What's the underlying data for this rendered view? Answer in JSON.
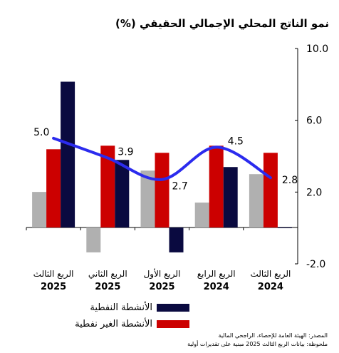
{
  "chart_data": {
    "type": "bar",
    "title": "نمو الناتج المحلي الإجمالي الحقيقي (%)",
    "categories": [
      {
        "line1": "الربع الثالث",
        "line2": "2025"
      },
      {
        "line1": "الربع الثاني",
        "line2": "2025"
      },
      {
        "line1": "الربع الأول",
        "line2": "2025"
      },
      {
        "line1": "الربع الرابع",
        "line2": "2024"
      },
      {
        "line1": "الربع الثالث",
        "line2": "2024"
      }
    ],
    "series": [
      {
        "key": "total",
        "type": "bar",
        "color": "#b0b0b0",
        "values": [
          1.0,
          -0.7,
          1.6,
          0.7,
          1.5
        ]
      },
      {
        "key": "nonoil",
        "type": "bar",
        "color": "#cc0000",
        "name": "الأنشطة الغير نفطية",
        "values": [
          2.2,
          2.3,
          2.1,
          2.3,
          2.1
        ]
      },
      {
        "key": "oil",
        "type": "bar",
        "color": "#0a0a40",
        "name": "الأنشطة النفطية",
        "values": [
          4.1,
          1.9,
          -0.7,
          1.7,
          0.0
        ]
      },
      {
        "key": "line",
        "type": "line",
        "color": "#2b2bee",
        "values": [
          5.0,
          3.9,
          2.7,
          4.5,
          2.8
        ],
        "labels": [
          "5.0",
          "3.9",
          "2.7",
          "4.5",
          "2.8"
        ]
      }
    ],
    "y_axis": {
      "position": "right",
      "ticks": [
        "10.0",
        "6.0",
        "2.0",
        "-2.0"
      ],
      "tick_values": [
        10,
        6,
        2,
        -2
      ]
    },
    "bar_ylim": [
      -5.0,
      5.0
    ],
    "line_ylim": [
      -2.0,
      10.0
    ],
    "legend": [
      {
        "label": "الأنشطة النفطية",
        "color": "#0a0a40"
      },
      {
        "label": "الأنشطة الغير نفطية",
        "color": "#cc0000"
      }
    ]
  },
  "footnotes": {
    "source": "المصدر: الهيئة العامة للإحصاء، الراجحي المالية",
    "note": "ملحوظة: بيانات الربع الثالث 2025 مبنية على تقديرات أولية"
  }
}
